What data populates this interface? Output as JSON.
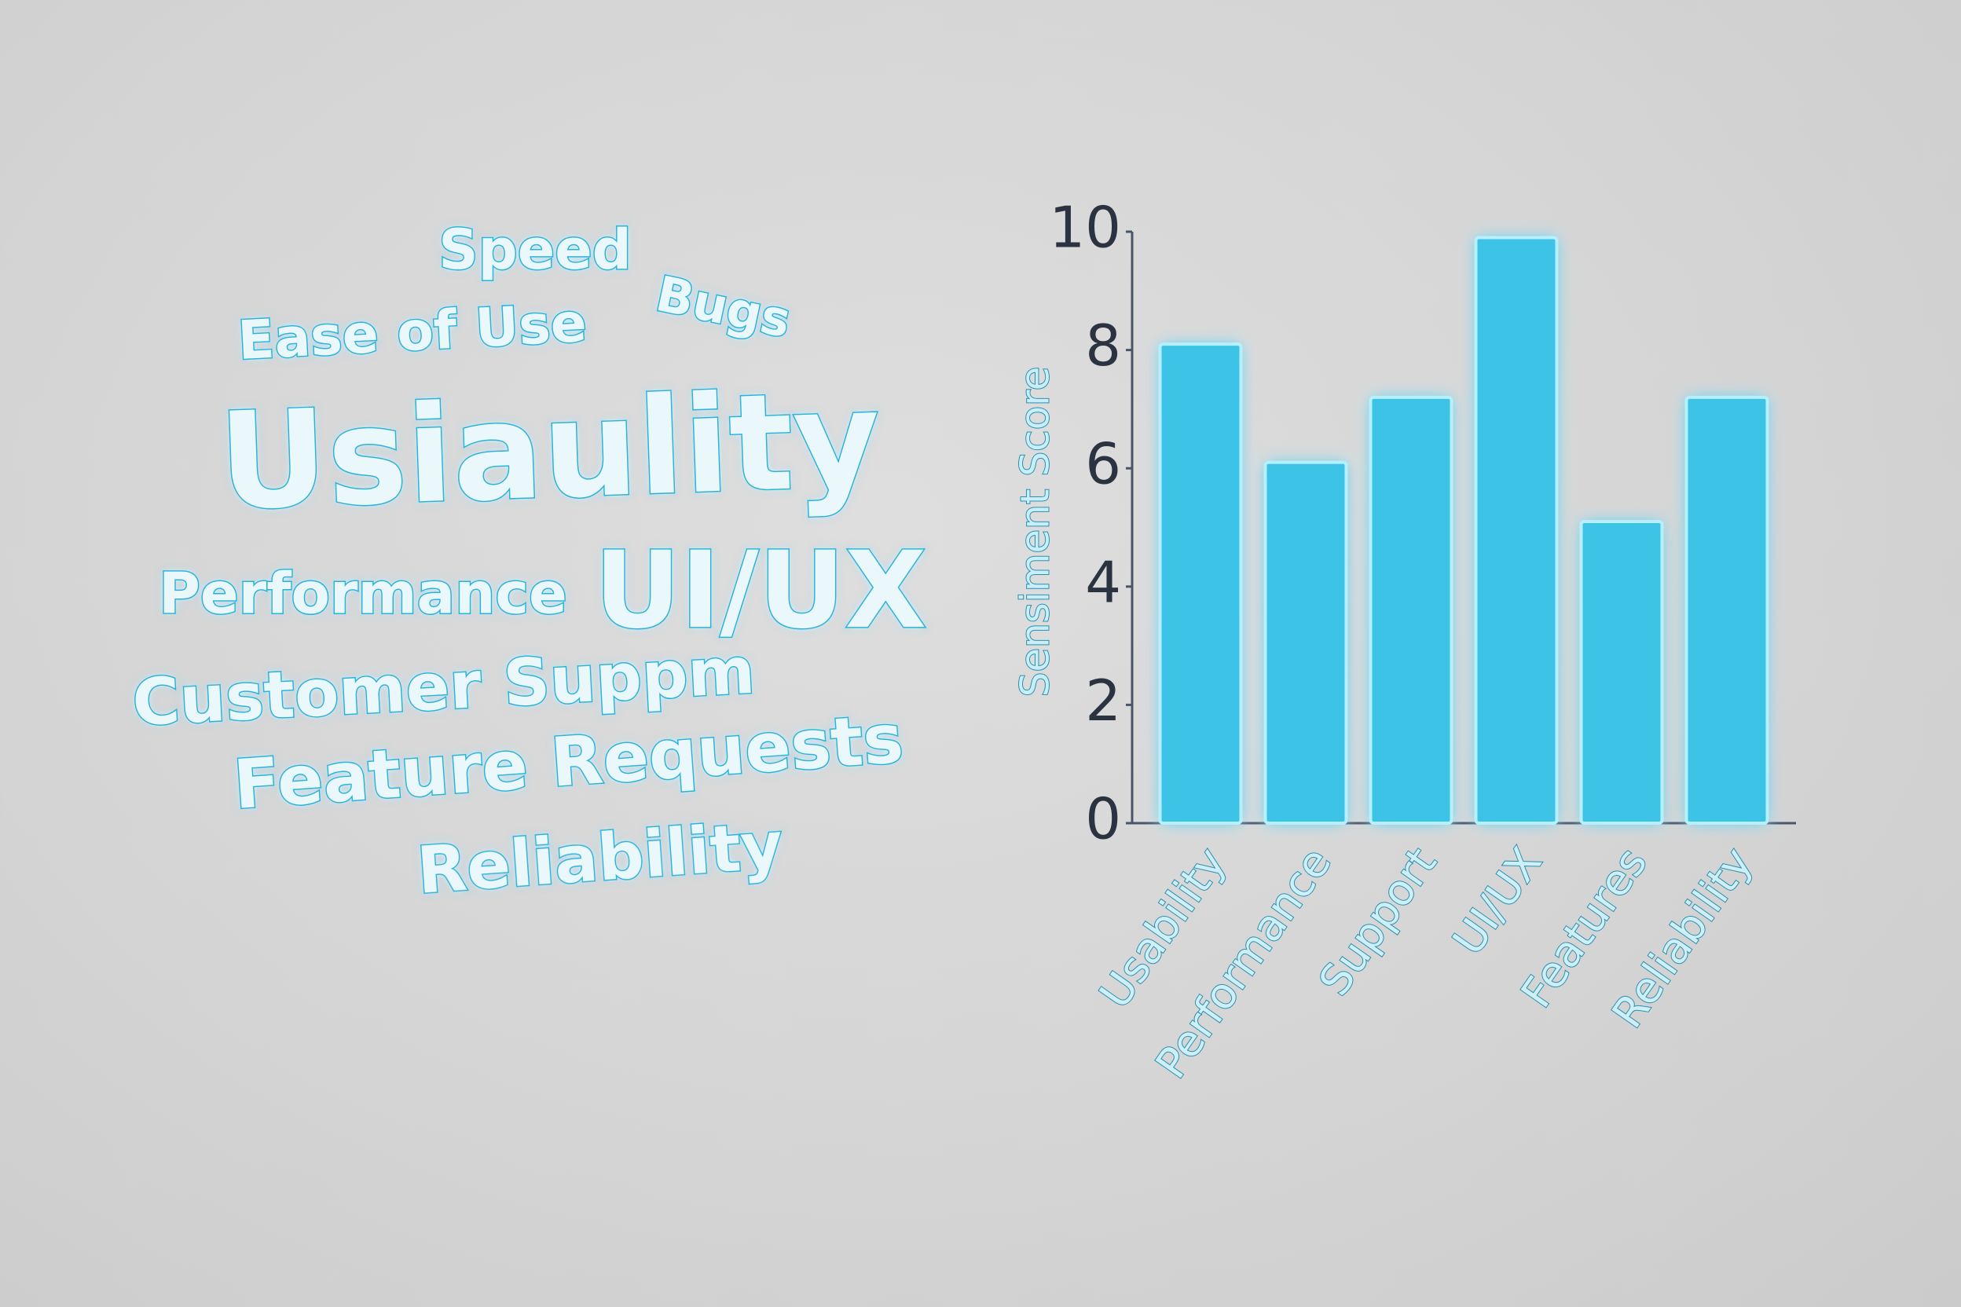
{
  "chart_data": [
    {
      "type": "wordcloud",
      "words": [
        "Speed",
        "Bugs",
        "Ease of Use",
        "Usiaulity",
        "Performance",
        "UI/UX",
        "Customer Suppm",
        "Feature Requests",
        "Reliability"
      ]
    },
    {
      "type": "bar",
      "y_label": "Sensiment Score",
      "categories": [
        "Usability",
        "Performance",
        "Support",
        "UI/UX",
        "Features",
        "Reliability"
      ],
      "values": [
        8.1,
        6.1,
        7.2,
        9.9,
        5.1,
        7.2
      ],
      "color": "#3cc3e6",
      "ylim": [
        0,
        10
      ],
      "yticks": [
        0,
        2,
        4,
        6,
        8,
        10
      ],
      "grid": false
    }
  ]
}
